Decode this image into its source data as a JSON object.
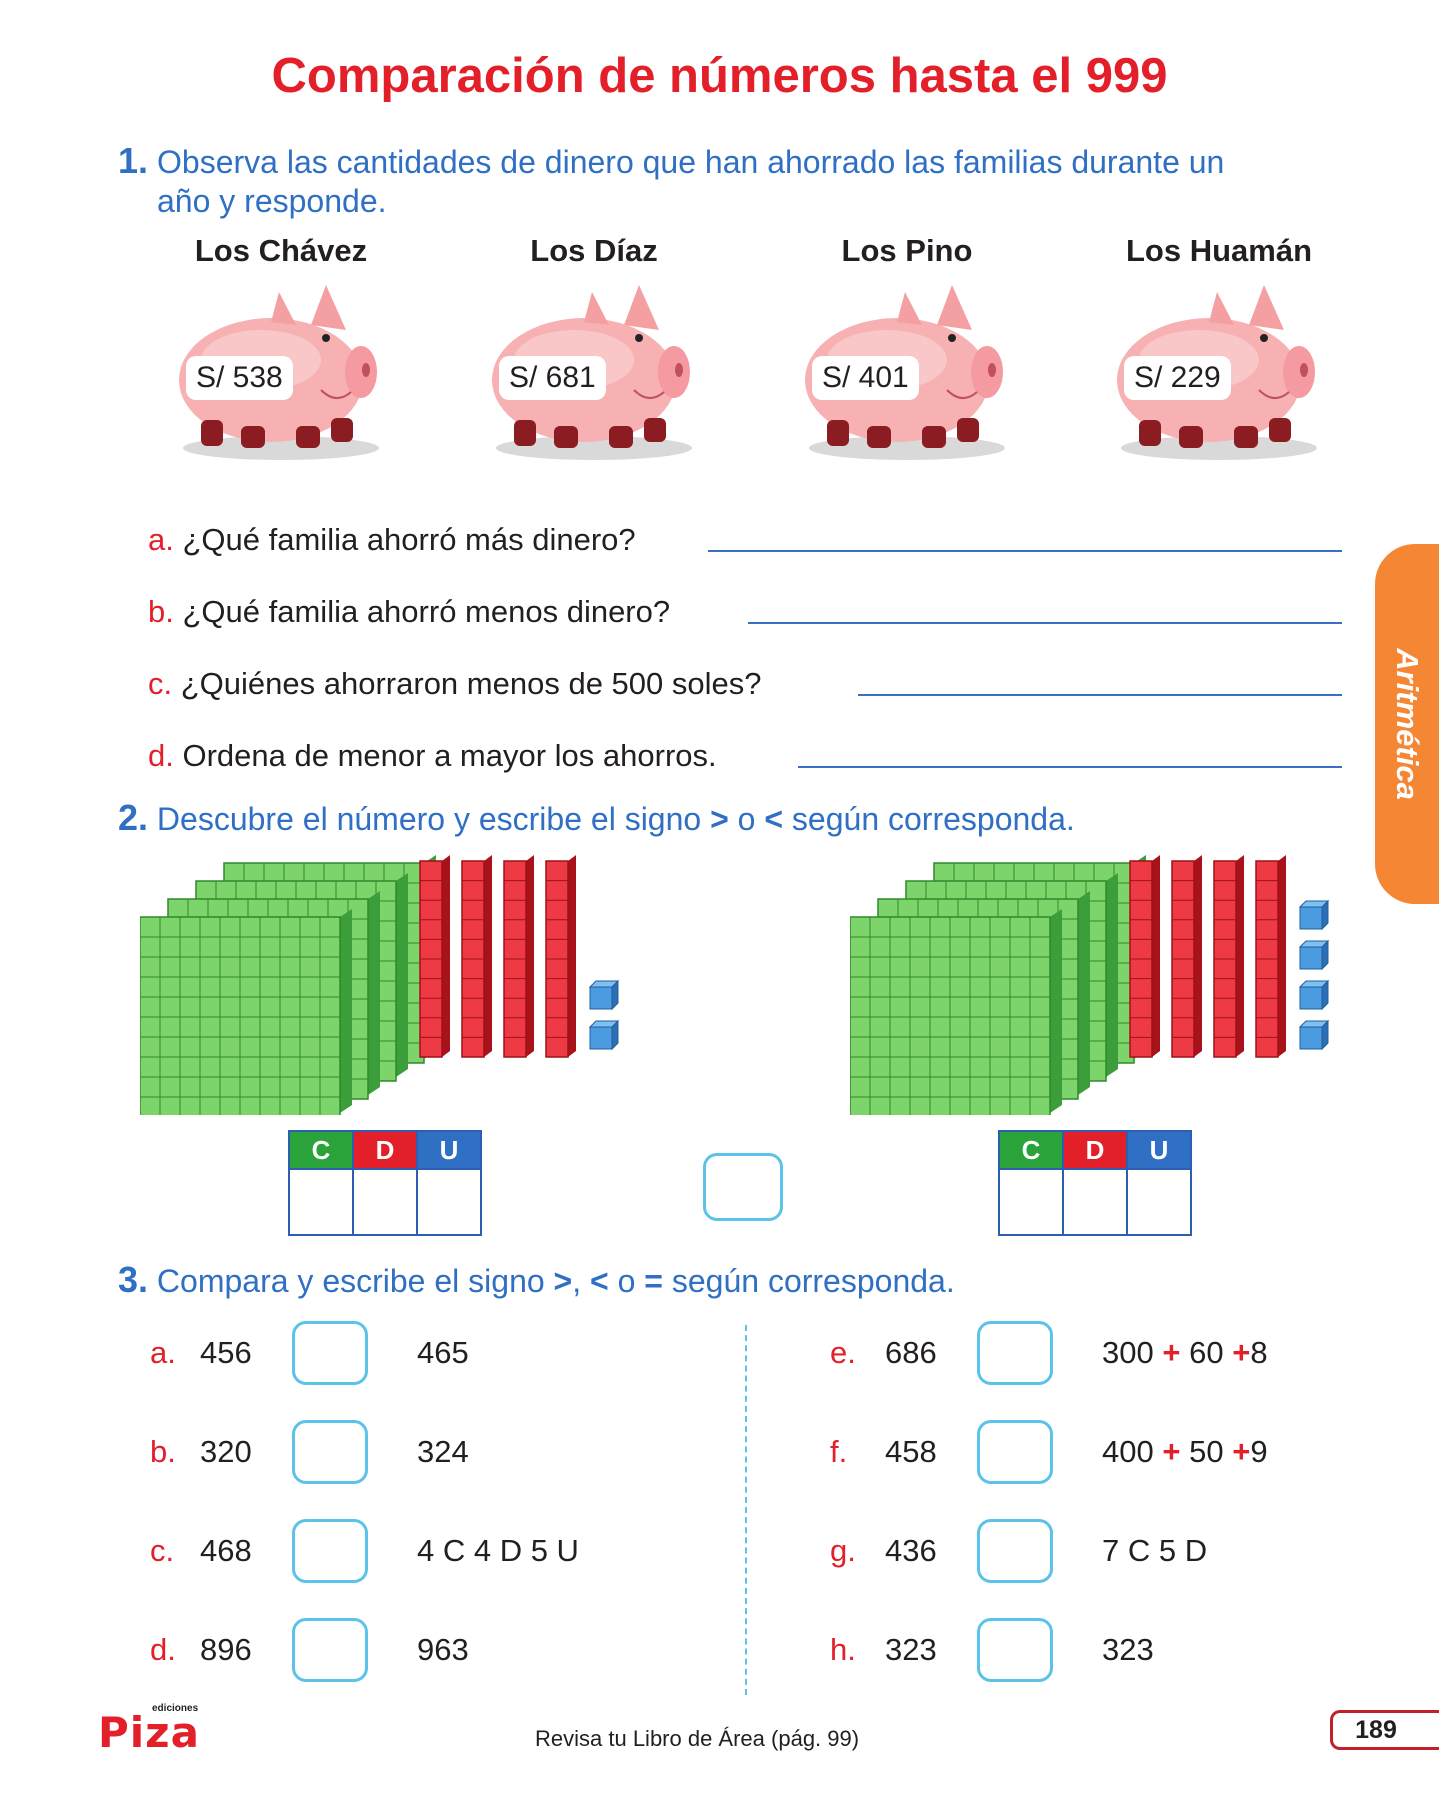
{
  "title": "Comparación de números hasta el 999",
  "q1": {
    "number": "1.",
    "text_line1": "Observa las cantidades de dinero que han ahorrado las familias durante un",
    "text_line2": "año y responde.",
    "families": [
      {
        "name": "Los Chávez",
        "amount": "S/ 538"
      },
      {
        "name": "Los Díaz",
        "amount": "S/ 681"
      },
      {
        "name": "Los Pino",
        "amount": "S/ 401"
      },
      {
        "name": "Los Huamán",
        "amount": "S/ 229"
      }
    ],
    "questions": [
      {
        "letter": "a.",
        "text": "¿Qué familia ahorró más dinero?"
      },
      {
        "letter": "b.",
        "text": "¿Qué familia ahorró menos dinero?"
      },
      {
        "letter": "c.",
        "text": "¿Quiénes ahorraron menos de 500 soles?"
      },
      {
        "letter": "d.",
        "text": "Ordena de menor a mayor los ahorros."
      }
    ]
  },
  "q2": {
    "number": "2.",
    "text_a": "Descubre el número y escribe el signo",
    "sign1": ">",
    "text_o": "o",
    "sign2": "<",
    "text_b": "según corresponda.",
    "headers": [
      "C",
      "D",
      "U"
    ],
    "left_blocks": {
      "hundreds": 4,
      "tens": 4,
      "units": 2
    },
    "right_blocks": {
      "hundreds": 4,
      "tens": 4,
      "units": 4
    }
  },
  "q3": {
    "number": "3.",
    "text_a": "Compara y escribe el signo",
    "sign1": ">",
    "comma": ",",
    "sign2": "<",
    "text_o": "o",
    "sign3": "=",
    "text_b": "según corresponda.",
    "left": [
      {
        "letter": "a.",
        "left": "456",
        "right": "465"
      },
      {
        "letter": "b.",
        "left": "320",
        "right": "324"
      },
      {
        "letter": "c.",
        "left": "468",
        "right": "4 C  4 D  5 U"
      },
      {
        "letter": "d.",
        "left": "896",
        "right": "963"
      }
    ],
    "right": [
      {
        "letter": "e.",
        "left": "686",
        "r1": "300",
        "op1": "+",
        "r2": "60",
        "op2": "+",
        "r3": "8"
      },
      {
        "letter": "f.",
        "left": "458",
        "r1": "400",
        "op1": "+",
        "r2": "50",
        "op2": "+",
        "r3": "9"
      },
      {
        "letter": "g.",
        "left": "436",
        "r1": "7 C  5 D",
        "op1": "",
        "r2": "",
        "op2": "",
        "r3": ""
      },
      {
        "letter": "h.",
        "left": "323",
        "r1": "323",
        "op1": "",
        "r2": "",
        "op2": "",
        "r3": ""
      }
    ]
  },
  "side_tab": "Aritmética",
  "footer": {
    "logo_small": "ediciones",
    "logo": "Piza",
    "note": "Revisa tu Libro de Área (pág. 99)",
    "page": "189"
  },
  "colors": {
    "title": "#e3202a",
    "blue": "#2f6fc4",
    "tab": "#f58634",
    "c": "#2aa33b",
    "d": "#e3202a",
    "u": "#2f6fc4"
  }
}
